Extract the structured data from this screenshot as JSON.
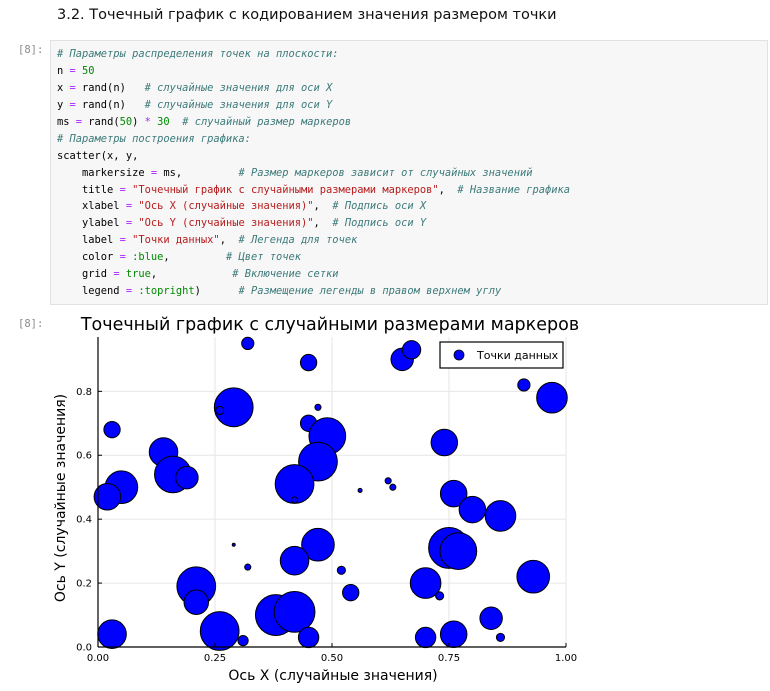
{
  "section_title": "3.2. Точечный график с кодированием значения размером точки",
  "cell": {
    "input_prompt": "[8]:",
    "output_prompt": "[8]:",
    "code_lines": [
      [
        {
          "t": "c",
          "v": "# Параметры распределения точек на плоскости:"
        }
      ],
      [
        {
          "t": "p",
          "v": "n "
        },
        {
          "t": "o",
          "v": "="
        },
        {
          "t": "p",
          "v": " "
        },
        {
          "t": "n",
          "v": "50"
        }
      ],
      [
        {
          "t": "p",
          "v": "x "
        },
        {
          "t": "o",
          "v": "="
        },
        {
          "t": "p",
          "v": " rand(n)   "
        },
        {
          "t": "c",
          "v": "# случайные значения для оси X"
        }
      ],
      [
        {
          "t": "p",
          "v": "y "
        },
        {
          "t": "o",
          "v": "="
        },
        {
          "t": "p",
          "v": " rand(n)   "
        },
        {
          "t": "c",
          "v": "# случайные значения для оси Y"
        }
      ],
      [
        {
          "t": "p",
          "v": "ms "
        },
        {
          "t": "o",
          "v": "="
        },
        {
          "t": "p",
          "v": " rand("
        },
        {
          "t": "n",
          "v": "50"
        },
        {
          "t": "p",
          "v": ") "
        },
        {
          "t": "o",
          "v": "*"
        },
        {
          "t": "p",
          "v": " "
        },
        {
          "t": "n",
          "v": "30"
        },
        {
          "t": "p",
          "v": "  "
        },
        {
          "t": "c",
          "v": "# случайный размер маркеров"
        }
      ],
      [
        {
          "t": "c",
          "v": "# Параметры построения графика:"
        }
      ],
      [
        {
          "t": "p",
          "v": "scatter(x, y,"
        }
      ],
      [
        {
          "t": "p",
          "v": "    markersize "
        },
        {
          "t": "o",
          "v": "="
        },
        {
          "t": "p",
          "v": " ms,         "
        },
        {
          "t": "c",
          "v": "# Размер маркеров зависит от случайных значений"
        }
      ],
      [
        {
          "t": "p",
          "v": "    title "
        },
        {
          "t": "o",
          "v": "="
        },
        {
          "t": "p",
          "v": " "
        },
        {
          "t": "s",
          "v": "\"Точечный график с случайными размерами маркеров\""
        },
        {
          "t": "p",
          "v": ",  "
        },
        {
          "t": "c",
          "v": "# Название графика"
        }
      ],
      [
        {
          "t": "p",
          "v": "    xlabel "
        },
        {
          "t": "o",
          "v": "="
        },
        {
          "t": "p",
          "v": " "
        },
        {
          "t": "s",
          "v": "\"Ось X (случайные значения)\""
        },
        {
          "t": "p",
          "v": ",  "
        },
        {
          "t": "c",
          "v": "# Подпись оси X"
        }
      ],
      [
        {
          "t": "p",
          "v": "    ylabel "
        },
        {
          "t": "o",
          "v": "="
        },
        {
          "t": "p",
          "v": " "
        },
        {
          "t": "s",
          "v": "\"Ось Y (случайные значения)\""
        },
        {
          "t": "p",
          "v": ",  "
        },
        {
          "t": "c",
          "v": "# Подпись оси Y"
        }
      ],
      [
        {
          "t": "p",
          "v": "    label "
        },
        {
          "t": "o",
          "v": "="
        },
        {
          "t": "p",
          "v": " "
        },
        {
          "t": "s",
          "v": "\"Точки данных\""
        },
        {
          "t": "p",
          "v": ",  "
        },
        {
          "t": "c",
          "v": "# Легенда для точек"
        }
      ],
      [
        {
          "t": "p",
          "v": "    color "
        },
        {
          "t": "o",
          "v": "="
        },
        {
          "t": "p",
          "v": " "
        },
        {
          "t": "sym",
          "v": ":blue"
        },
        {
          "t": "p",
          "v": ",         "
        },
        {
          "t": "c",
          "v": "# Цвет точек"
        }
      ],
      [
        {
          "t": "p",
          "v": "    grid "
        },
        {
          "t": "o",
          "v": "="
        },
        {
          "t": "p",
          "v": " "
        },
        {
          "t": "kw",
          "v": "true"
        },
        {
          "t": "p",
          "v": ",            "
        },
        {
          "t": "c",
          "v": "# Включение сетки"
        }
      ],
      [
        {
          "t": "p",
          "v": "    legend "
        },
        {
          "t": "o",
          "v": "="
        },
        {
          "t": "p",
          "v": " "
        },
        {
          "t": "sym",
          "v": ":topright"
        },
        {
          "t": "p",
          "v": ")      "
        },
        {
          "t": "c",
          "v": "# Размещение легенды в правом верхнем углу"
        }
      ]
    ]
  },
  "chart_data": {
    "type": "scatter",
    "title": "Точечный график с случайными размерами маркеров",
    "xlabel": "Ось X (случайные значения)",
    "ylabel": "Ось Y (случайные значения)",
    "xlim": [
      0,
      1
    ],
    "ylim": [
      0,
      0.97
    ],
    "xticks": [
      0,
      0.25,
      0.5,
      0.75,
      1
    ],
    "xtick_labels": [
      "0.00",
      "0.25",
      "0.50",
      "0.75",
      "1.00"
    ],
    "yticks": [
      0,
      0.2,
      0.4,
      0.6,
      0.8
    ],
    "ytick_labels": [
      "0.0",
      "0.2",
      "0.4",
      "0.6",
      "0.8"
    ],
    "grid": true,
    "legend": {
      "position": "top-right",
      "entries": [
        "Точки данных"
      ]
    },
    "color": "#0000ff",
    "edge_color": "#000000",
    "series": [
      {
        "name": "Точки данных",
        "points": [
          {
            "x": 0.32,
            "y": 0.95,
            "size": 6
          },
          {
            "x": 0.45,
            "y": 0.89,
            "size": 8
          },
          {
            "x": 0.65,
            "y": 0.9,
            "size": 11
          },
          {
            "x": 0.67,
            "y": 0.93,
            "size": 9
          },
          {
            "x": 0.91,
            "y": 0.82,
            "size": 6
          },
          {
            "x": 0.97,
            "y": 0.78,
            "size": 15
          },
          {
            "x": 0.29,
            "y": 0.75,
            "size": 19
          },
          {
            "x": 0.26,
            "y": 0.74,
            "size": 4
          },
          {
            "x": 0.47,
            "y": 0.75,
            "size": 3
          },
          {
            "x": 0.03,
            "y": 0.68,
            "size": 8
          },
          {
            "x": 0.45,
            "y": 0.7,
            "size": 8
          },
          {
            "x": 0.49,
            "y": 0.66,
            "size": 18
          },
          {
            "x": 0.74,
            "y": 0.64,
            "size": 13
          },
          {
            "x": 0.14,
            "y": 0.61,
            "size": 14
          },
          {
            "x": 0.47,
            "y": 0.58,
            "size": 19
          },
          {
            "x": 0.16,
            "y": 0.54,
            "size": 18
          },
          {
            "x": 0.19,
            "y": 0.53,
            "size": 11
          },
          {
            "x": 0.42,
            "y": 0.51,
            "size": 19
          },
          {
            "x": 0.05,
            "y": 0.5,
            "size": 16
          },
          {
            "x": 0.02,
            "y": 0.47,
            "size": 13
          },
          {
            "x": 0.42,
            "y": 0.46,
            "size": 3
          },
          {
            "x": 0.56,
            "y": 0.49,
            "size": 2
          },
          {
            "x": 0.62,
            "y": 0.52,
            "size": 3
          },
          {
            "x": 0.63,
            "y": 0.5,
            "size": 3
          },
          {
            "x": 0.76,
            "y": 0.48,
            "size": 13
          },
          {
            "x": 0.8,
            "y": 0.43,
            "size": 13
          },
          {
            "x": 0.86,
            "y": 0.41,
            "size": 15
          },
          {
            "x": 0.47,
            "y": 0.32,
            "size": 16
          },
          {
            "x": 0.42,
            "y": 0.27,
            "size": 14
          },
          {
            "x": 0.29,
            "y": 0.32,
            "size": 1
          },
          {
            "x": 0.32,
            "y": 0.25,
            "size": 3
          },
          {
            "x": 0.52,
            "y": 0.24,
            "size": 4
          },
          {
            "x": 0.54,
            "y": 0.17,
            "size": 8
          },
          {
            "x": 0.75,
            "y": 0.31,
            "size": 20
          },
          {
            "x": 0.77,
            "y": 0.3,
            "size": 18
          },
          {
            "x": 0.7,
            "y": 0.2,
            "size": 15
          },
          {
            "x": 0.73,
            "y": 0.16,
            "size": 4
          },
          {
            "x": 0.93,
            "y": 0.22,
            "size": 16
          },
          {
            "x": 0.21,
            "y": 0.19,
            "size": 19
          },
          {
            "x": 0.21,
            "y": 0.14,
            "size": 12
          },
          {
            "x": 0.38,
            "y": 0.1,
            "size": 20
          },
          {
            "x": 0.42,
            "y": 0.11,
            "size": 20
          },
          {
            "x": 0.45,
            "y": 0.03,
            "size": 10
          },
          {
            "x": 0.26,
            "y": 0.05,
            "size": 19
          },
          {
            "x": 0.03,
            "y": 0.04,
            "size": 14
          },
          {
            "x": 0.7,
            "y": 0.03,
            "size": 10
          },
          {
            "x": 0.76,
            "y": 0.04,
            "size": 13
          },
          {
            "x": 0.84,
            "y": 0.09,
            "size": 11
          },
          {
            "x": 0.86,
            "y": 0.03,
            "size": 4
          },
          {
            "x": 0.31,
            "y": 0.02,
            "size": 5
          }
        ]
      }
    ]
  }
}
